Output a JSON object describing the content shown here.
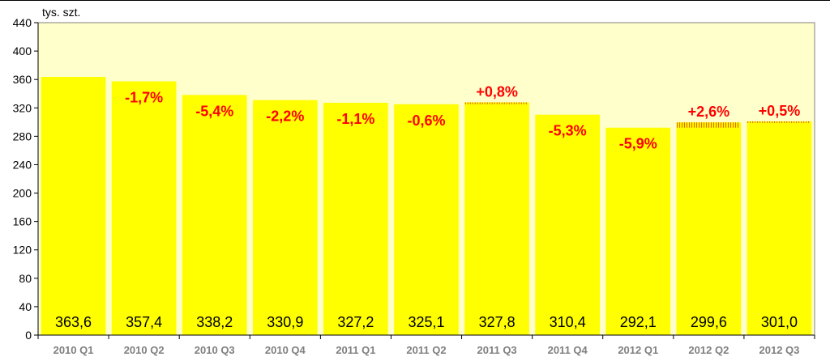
{
  "chart_data": {
    "type": "bar",
    "ylabel": "tys. szt.",
    "ylim": [
      0,
      440
    ],
    "yticks": [
      0,
      40,
      80,
      120,
      160,
      200,
      240,
      280,
      320,
      360,
      400,
      440
    ],
    "categories": [
      "2010 Q1",
      "2010 Q2",
      "2010 Q3",
      "2010 Q4",
      "2011 Q1",
      "2011 Q2",
      "2011 Q3",
      "2011 Q4",
      "2012 Q1",
      "2012 Q2",
      "2012 Q3"
    ],
    "values": [
      363.6,
      357.4,
      338.2,
      330.9,
      327.2,
      325.1,
      327.8,
      310.4,
      292.1,
      299.6,
      301.0
    ],
    "value_labels": [
      "363,6",
      "357,4",
      "338,2",
      "330,9",
      "327,2",
      "325,1",
      "327,8",
      "310,4",
      "292,1",
      "299,6",
      "301,0"
    ],
    "change_labels": [
      "",
      "-1,7%",
      "-5,4%",
      "-2,2%",
      "-1,1%",
      "-0,6%",
      "+0,8%",
      "-5,3%",
      "-5,9%",
      "+2,6%",
      "+0,5%"
    ],
    "grid": false,
    "legend": "none",
    "colors": {
      "bar_fill": "#ffff00",
      "plot_background": "#ffffcc",
      "change_text": "#ff0000",
      "increase_stripe": "#e07000"
    }
  }
}
